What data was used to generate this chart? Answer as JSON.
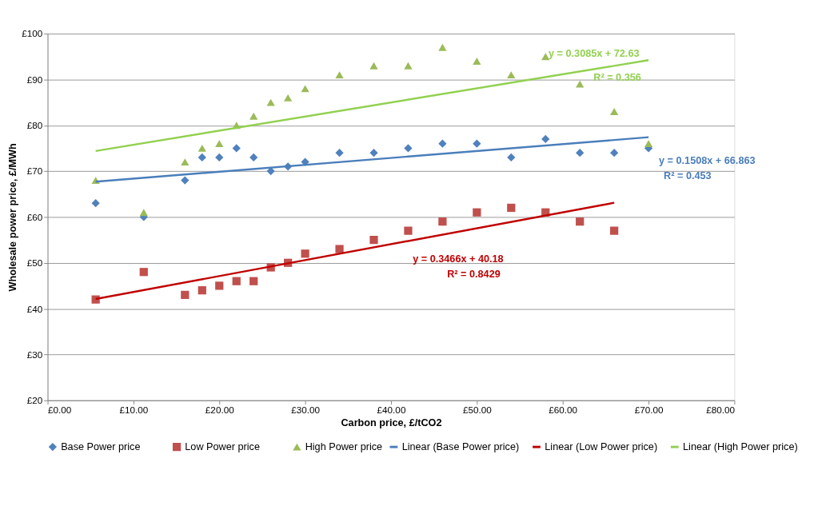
{
  "chart_data": {
    "type": "scatter",
    "xlabel": "Carbon price, £/tCO2",
    "ylabel": "Wholesale power price, £/MWh",
    "x": [
      5.6,
      11.2,
      16,
      18,
      20,
      22,
      24,
      26,
      28,
      30,
      34,
      38,
      42,
      46,
      50,
      54,
      58,
      62,
      66,
      70
    ],
    "series": [
      {
        "name": "Base Power price",
        "marker": "diamond",
        "color": "#4f81bd",
        "values": [
          63,
          60,
          68,
          73,
          73,
          75,
          73,
          70,
          71,
          72,
          74,
          74,
          75,
          76,
          76,
          73,
          77,
          74,
          74,
          75
        ]
      },
      {
        "name": "Low Power price",
        "marker": "square",
        "color": "#c0504d",
        "values": [
          42,
          48,
          43,
          44,
          45,
          46,
          46,
          49,
          50,
          52,
          53,
          55,
          57,
          59,
          61,
          62,
          61,
          59,
          57,
          null
        ]
      },
      {
        "name": "High Power price",
        "marker": "triangle",
        "color": "#9bbb59",
        "values": [
          68,
          61,
          72,
          75,
          76,
          80,
          82,
          85,
          86,
          88,
          91,
          93,
          93,
          97,
          94,
          91,
          95,
          89,
          83,
          76
        ]
      },
      {
        "name": "Linear (Base Power price)",
        "type": "line",
        "color": "#4a7ebb",
        "x": [
          5.6,
          70
        ],
        "values": [
          67.7,
          77.4
        ]
      },
      {
        "name": "Linear (Low Power price)",
        "type": "line",
        "color": "#c00000",
        "x": [
          5.6,
          66
        ],
        "values": [
          42.1,
          63.1
        ]
      },
      {
        "name": "Linear (High Power price)",
        "type": "line",
        "color": "#92d050",
        "x": [
          5.6,
          70
        ],
        "values": [
          74.4,
          94.2
        ]
      }
    ],
    "xlim": [
      0,
      80
    ],
    "ylim": [
      20,
      100
    ],
    "xticks": [
      {
        "value": 0,
        "label": "£0.00"
      },
      {
        "value": 10,
        "label": "£10.00"
      },
      {
        "value": 20,
        "label": "£20.00"
      },
      {
        "value": 30,
        "label": "£30.00"
      },
      {
        "value": 40,
        "label": "£40.00"
      },
      {
        "value": 50,
        "label": "£50.00"
      },
      {
        "value": 60,
        "label": "£60.00"
      },
      {
        "value": 70,
        "label": "£70.00"
      },
      {
        "value": 80,
        "label": "£80.00"
      }
    ],
    "yticks": [
      {
        "value": 20,
        "label": "£20"
      },
      {
        "value": 30,
        "label": "£30"
      },
      {
        "value": 40,
        "label": "£40"
      },
      {
        "value": 50,
        "label": "£50"
      },
      {
        "value": 60,
        "label": "£60"
      },
      {
        "value": 70,
        "label": "£70"
      },
      {
        "value": 80,
        "label": "£80"
      },
      {
        "value": 90,
        "label": "£90"
      },
      {
        "value": 100,
        "label": "£100"
      }
    ],
    "annotations": [
      "y = 0.1508x + 66.863",
      "R² = 0.453",
      "y = 0.3466x + 40.18",
      "R² = 0.8429",
      "y = 0.3085x + 72.63",
      "R² = 0.356"
    ],
    "grid": "y",
    "legend": "bottom"
  }
}
